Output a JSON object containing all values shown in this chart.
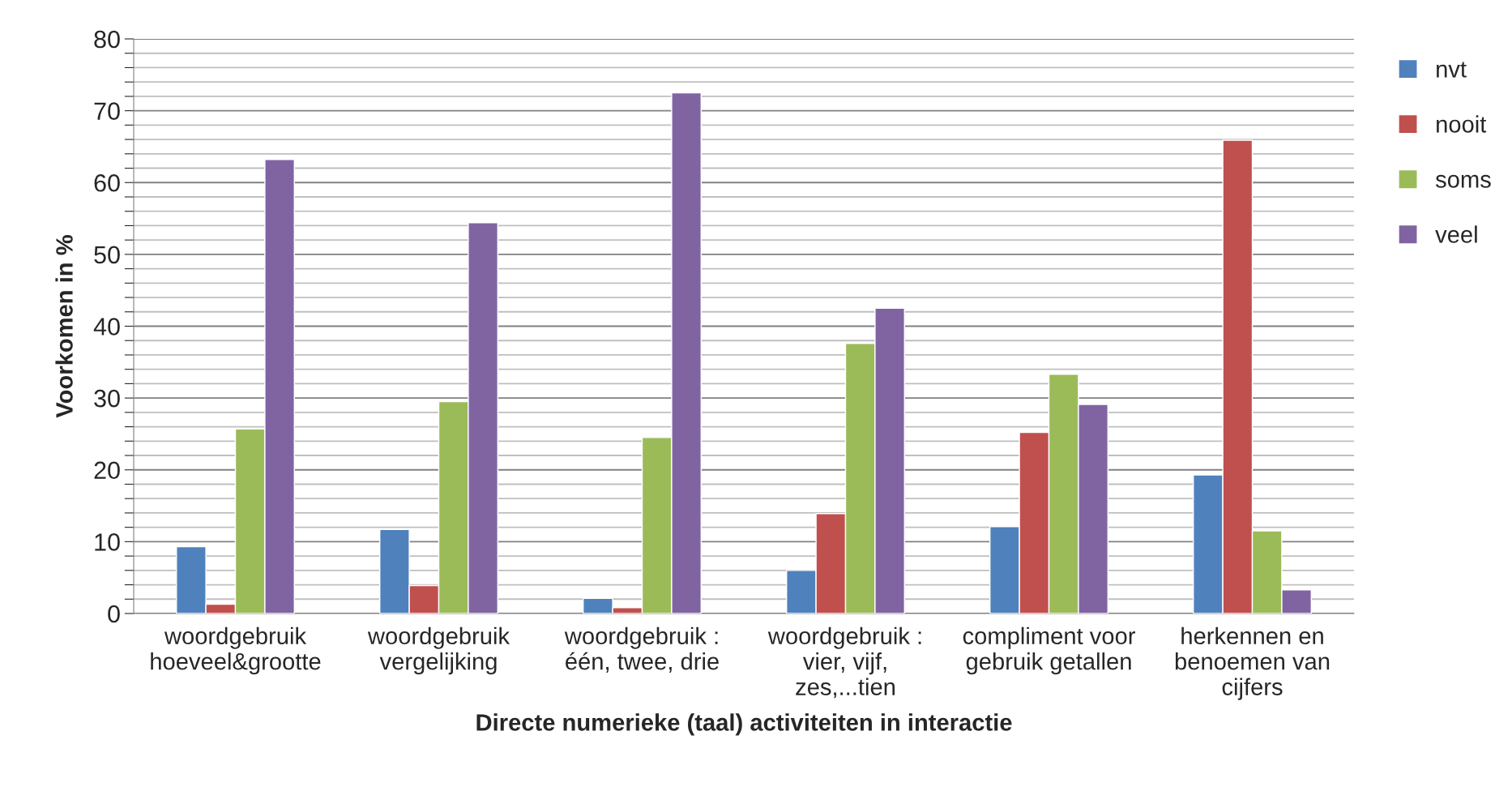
{
  "chart_data": {
    "type": "bar",
    "xlabel": "Directe numerieke (taal) activiteiten in interactie",
    "ylabel": "Voorkomen in %",
    "categories": [
      "woordgebruik hoeveel&grootte",
      "woordgebruik vergelijking",
      "woordgebruik : één, twee, drie",
      "woordgebruik : vier, vijf, zes,...tien",
      "compliment voor gebruik getallen",
      "herkennen en benoemen van cijfers"
    ],
    "series": [
      {
        "name": "nvt",
        "color": "#4f81bd",
        "values": [
          9.3,
          11.7,
          2.1,
          6.0,
          12.1,
          19.3
        ]
      },
      {
        "name": "nooit",
        "color": "#c0504d",
        "values": [
          1.3,
          3.9,
          0.8,
          13.9,
          25.2,
          65.9
        ]
      },
      {
        "name": "soms",
        "color": "#9bbb59",
        "values": [
          25.7,
          29.5,
          24.5,
          37.6,
          33.3,
          11.5
        ]
      },
      {
        "name": "veel",
        "color": "#8064a2",
        "values": [
          63.2,
          54.4,
          72.5,
          42.5,
          29.1,
          3.3
        ]
      }
    ],
    "ylim": [
      0,
      80
    ],
    "yticks": [
      0,
      {
        "value": 2,
        "label": null
      },
      {
        "value": 4,
        "label": null
      },
      {
        "value": 6,
        "label": null
      },
      {
        "value": 8,
        "label": null
      },
      10,
      {
        "value": 12,
        "label": null
      },
      {
        "value": 14,
        "label": null
      },
      {
        "value": 16,
        "label": null
      },
      {
        "value": 18,
        "label": null
      },
      20,
      {
        "value": 22,
        "label": null
      },
      {
        "value": 24,
        "label": null
      },
      {
        "value": 26,
        "label": null
      },
      {
        "value": 28,
        "label": null
      },
      30,
      {
        "value": 32,
        "label": null
      },
      {
        "value": 34,
        "label": null
      },
      {
        "value": 36,
        "label": null
      },
      {
        "value": 38,
        "label": null
      },
      40,
      {
        "value": 42,
        "label": null
      },
      {
        "value": 44,
        "label": null
      },
      {
        "value": 46,
        "label": null
      },
      {
        "value": 48,
        "label": null
      },
      50,
      {
        "value": 52,
        "label": null
      },
      {
        "value": 54,
        "label": null
      },
      {
        "value": 56,
        "label": null
      },
      {
        "value": 58,
        "label": null
      },
      60,
      {
        "value": 62,
        "label": null
      },
      {
        "value": 64,
        "label": null
      },
      {
        "value": 66,
        "label": null
      },
      {
        "value": 68,
        "label": null
      },
      70,
      {
        "value": 72,
        "label": null
      },
      {
        "value": 74,
        "label": null
      },
      {
        "value": 76,
        "label": null
      },
      {
        "value": 78,
        "label": null
      },
      80
    ],
    "grid": "y",
    "legend": "right"
  }
}
